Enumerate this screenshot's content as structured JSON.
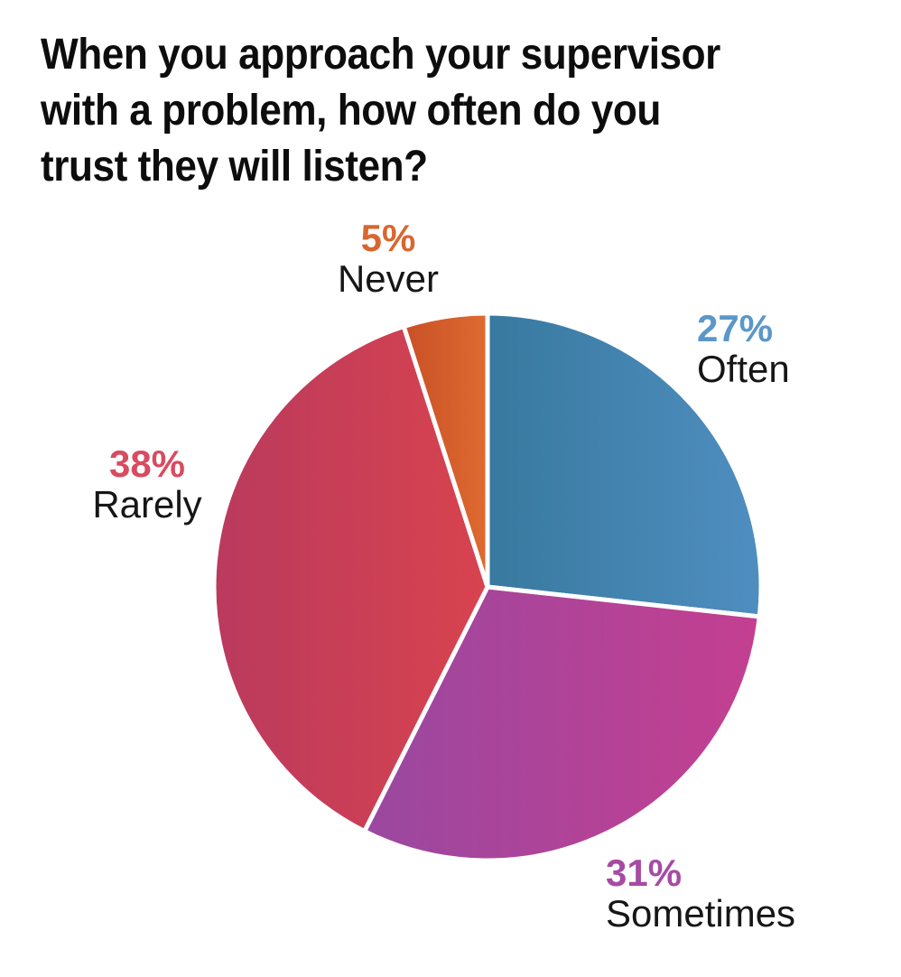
{
  "header": {
    "title_lines": [
      "When you approach your supervisor",
      "with a problem, how often do you",
      "trust they will listen?"
    ]
  },
  "chart_data": {
    "type": "pie",
    "title": "When you approach your supervisor with a problem, how often do you trust they will listen?",
    "direction": "clockwise",
    "start_angle_deg": 0,
    "background_color": "#ffffff",
    "separator_color": "#ffffff",
    "label_text_color": "#161616",
    "slices": [
      {
        "label": "Often",
        "value": 27,
        "pct_text": "27%",
        "color_start": "#38799F",
        "color_end": "#4F8EC0",
        "pct_color": "#5B97C9"
      },
      {
        "label": "Sometimes",
        "value": 31,
        "pct_text": "31%",
        "color_start": "#9A48A0",
        "color_end": "#C43F90",
        "pct_color": "#A64BA3"
      },
      {
        "label": "Rarely",
        "value": 38,
        "pct_text": "38%",
        "color_start": "#BA3A5E",
        "color_end": "#D8434E",
        "pct_color": "#D84B60"
      },
      {
        "label": "Never",
        "value": 5,
        "pct_text": "5%",
        "color_start": "#C95026",
        "color_end": "#DE6B30",
        "pct_color": "#D8672F"
      }
    ]
  }
}
